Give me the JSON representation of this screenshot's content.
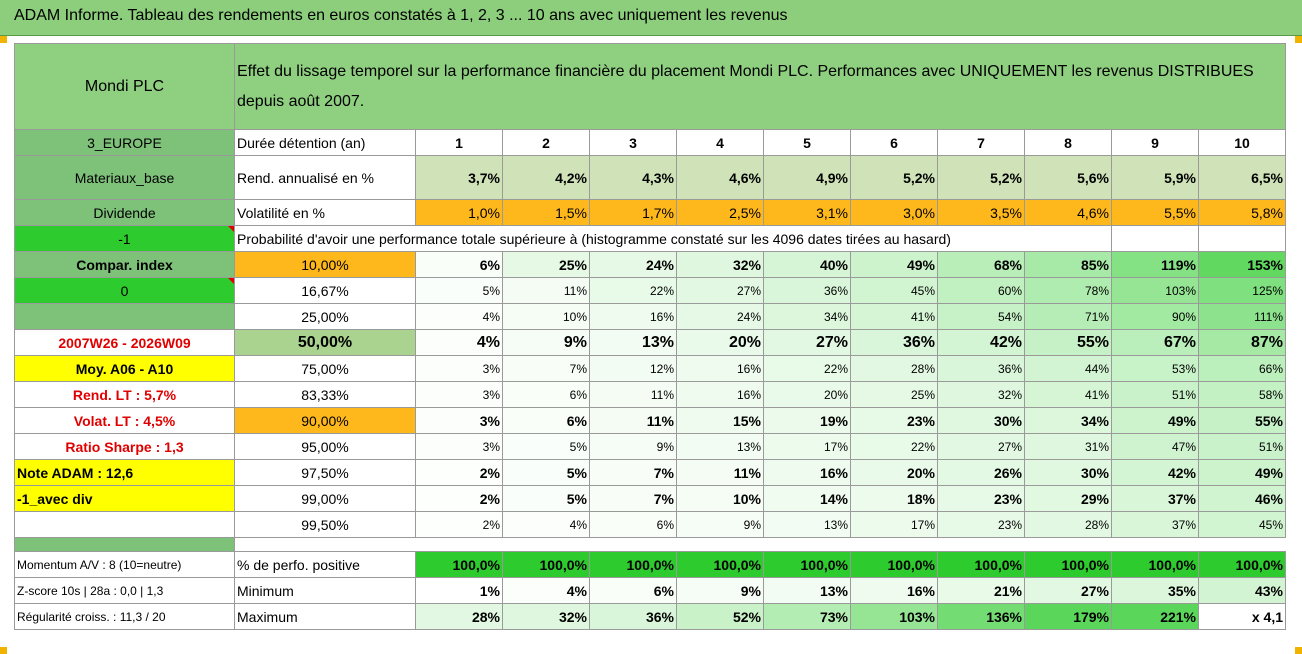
{
  "title": "ADAM Informe. Tableau des rendements en euros constatés à 1, 2, 3 ... 10 ans avec uniquement les revenus",
  "company": "Mondi PLC",
  "description": "Effet du lissage temporel sur la performance financière du placement Mondi PLC. Performances avec UNIQUEMENT les revenus DISTRIBUES depuis août 2007.",
  "side": {
    "region": "3_EUROPE",
    "sector": "Materiaux_base",
    "dividend": "Dividende",
    "minus_one": "-1",
    "compar": "Compar. index",
    "zero": "0",
    "period": "2007W26 - 2026W09",
    "moy": "Moy. A06 - A10",
    "rend_lt": "Rend. LT :   5,7%",
    "volat_lt": "Volat. LT :   4,5%",
    "sharpe": "Ratio Sharpe :    1,3",
    "note": "Note ADAM : 12,6",
    "avec_div": "-1_avec div",
    "momentum": "Momentum A/V : 8 (10=neutre)",
    "zscore": "Z-score 10s | 28a : 0,0 | 1,3",
    "regularite": "Régularité croiss. : 11,3 / 20"
  },
  "labels": {
    "duree": "Durée détention (an)",
    "rend": "Rend. annualisé en %",
    "volat": "Volatilité en %",
    "proba": "Probabilité d'avoir une performance totale supérieure à (histogramme constaté sur les 4096 dates tirées au hasard)",
    "perf_pos": "% de perfo. positive",
    "minimum": "Minimum",
    "maximum": "Maximum"
  },
  "years": [
    "1",
    "2",
    "3",
    "4",
    "5",
    "6",
    "7",
    "8",
    "9",
    "10"
  ],
  "rend": [
    "3,7%",
    "4,2%",
    "4,3%",
    "4,6%",
    "4,9%",
    "5,2%",
    "5,2%",
    "5,6%",
    "5,9%",
    "6,5%"
  ],
  "volat": [
    "1,0%",
    "1,5%",
    "1,7%",
    "2,5%",
    "3,1%",
    "3,0%",
    "3,5%",
    "4,6%",
    "5,5%",
    "5,8%"
  ],
  "prob_rows": [
    {
      "p": "10,00%",
      "v": [
        "6%",
        "25%",
        "24%",
        "32%",
        "40%",
        "49%",
        "68%",
        "85%",
        "119%",
        "153%"
      ]
    },
    {
      "p": "16,67%",
      "v": [
        "5%",
        "11%",
        "22%",
        "27%",
        "36%",
        "45%",
        "60%",
        "78%",
        "103%",
        "125%"
      ]
    },
    {
      "p": "25,00%",
      "v": [
        "4%",
        "10%",
        "16%",
        "24%",
        "34%",
        "41%",
        "54%",
        "71%",
        "90%",
        "111%"
      ]
    },
    {
      "p": "50,00%",
      "v": [
        "4%",
        "9%",
        "13%",
        "20%",
        "27%",
        "36%",
        "42%",
        "55%",
        "67%",
        "87%"
      ]
    },
    {
      "p": "75,00%",
      "v": [
        "3%",
        "7%",
        "12%",
        "16%",
        "22%",
        "28%",
        "36%",
        "44%",
        "53%",
        "66%"
      ]
    },
    {
      "p": "83,33%",
      "v": [
        "3%",
        "6%",
        "11%",
        "16%",
        "20%",
        "25%",
        "32%",
        "41%",
        "51%",
        "58%"
      ]
    },
    {
      "p": "90,00%",
      "v": [
        "3%",
        "6%",
        "11%",
        "15%",
        "19%",
        "23%",
        "30%",
        "34%",
        "49%",
        "55%"
      ]
    },
    {
      "p": "95,00%",
      "v": [
        "3%",
        "5%",
        "9%",
        "13%",
        "17%",
        "22%",
        "27%",
        "31%",
        "47%",
        "51%"
      ]
    },
    {
      "p": "97,50%",
      "v": [
        "2%",
        "5%",
        "7%",
        "11%",
        "16%",
        "20%",
        "26%",
        "30%",
        "42%",
        "49%"
      ]
    },
    {
      "p": "99,00%",
      "v": [
        "2%",
        "5%",
        "7%",
        "10%",
        "14%",
        "18%",
        "23%",
        "29%",
        "37%",
        "46%"
      ]
    },
    {
      "p": "99,50%",
      "v": [
        "2%",
        "4%",
        "6%",
        "9%",
        "13%",
        "17%",
        "23%",
        "28%",
        "37%",
        "45%"
      ]
    }
  ],
  "perf_pos": [
    "100,0%",
    "100,0%",
    "100,0%",
    "100,0%",
    "100,0%",
    "100,0%",
    "100,0%",
    "100,0%",
    "100,0%",
    "100,0%"
  ],
  "minimum": [
    "1%",
    "4%",
    "6%",
    "9%",
    "13%",
    "16%",
    "21%",
    "27%",
    "35%",
    "43%"
  ],
  "maximum": [
    "28%",
    "32%",
    "36%",
    "52%",
    "73%",
    "103%",
    "136%",
    "179%",
    "221%",
    "x 4,1"
  ]
}
